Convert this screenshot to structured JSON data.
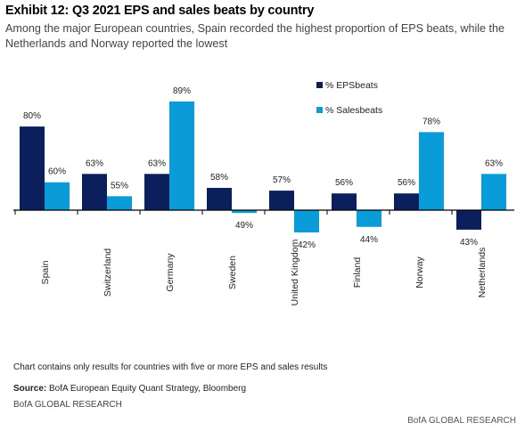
{
  "header": {
    "title": "Exhibit 12: Q3 2021 EPS and sales beats by country",
    "subtitle": "Among the major European countries, Spain recorded the highest proportion of EPS beats, while the Netherlands and Norway reported the lowest"
  },
  "chart_data": {
    "type": "bar",
    "categories": [
      "Spain",
      "Switzerland",
      "Germany",
      "Sweden",
      "United Kingdom",
      "Finland",
      "Norway",
      "Netherlands"
    ],
    "baseline": 50,
    "series": [
      {
        "name": "% EPSbeats",
        "color": "#0b1f5c",
        "values": [
          80,
          63,
          63,
          58,
          57,
          56,
          56,
          43
        ],
        "labels": [
          "80%",
          "63%",
          "63%",
          "58%",
          "57%",
          "56%",
          "56%",
          "43%"
        ]
      },
      {
        "name": "% Salesbeats",
        "color": "#0a9bd9",
        "values": [
          60,
          55,
          89,
          49,
          42,
          44,
          78,
          63
        ],
        "labels": [
          "60%",
          "55%",
          "89%",
          "49%",
          "42%",
          "44%",
          "78%",
          "63%"
        ]
      }
    ],
    "legend_position": "top-right",
    "grid": false
  },
  "notes": {
    "coverage": "Chart contains only results for countries with five or more EPS and sales results",
    "source_label": "Source:",
    "source_text": " BofA European Equity Quant Strategy, Bloomberg",
    "brand_left": "BofA GLOBAL RESEARCH",
    "brand_right": "BofA GLOBAL RESEARCH"
  }
}
